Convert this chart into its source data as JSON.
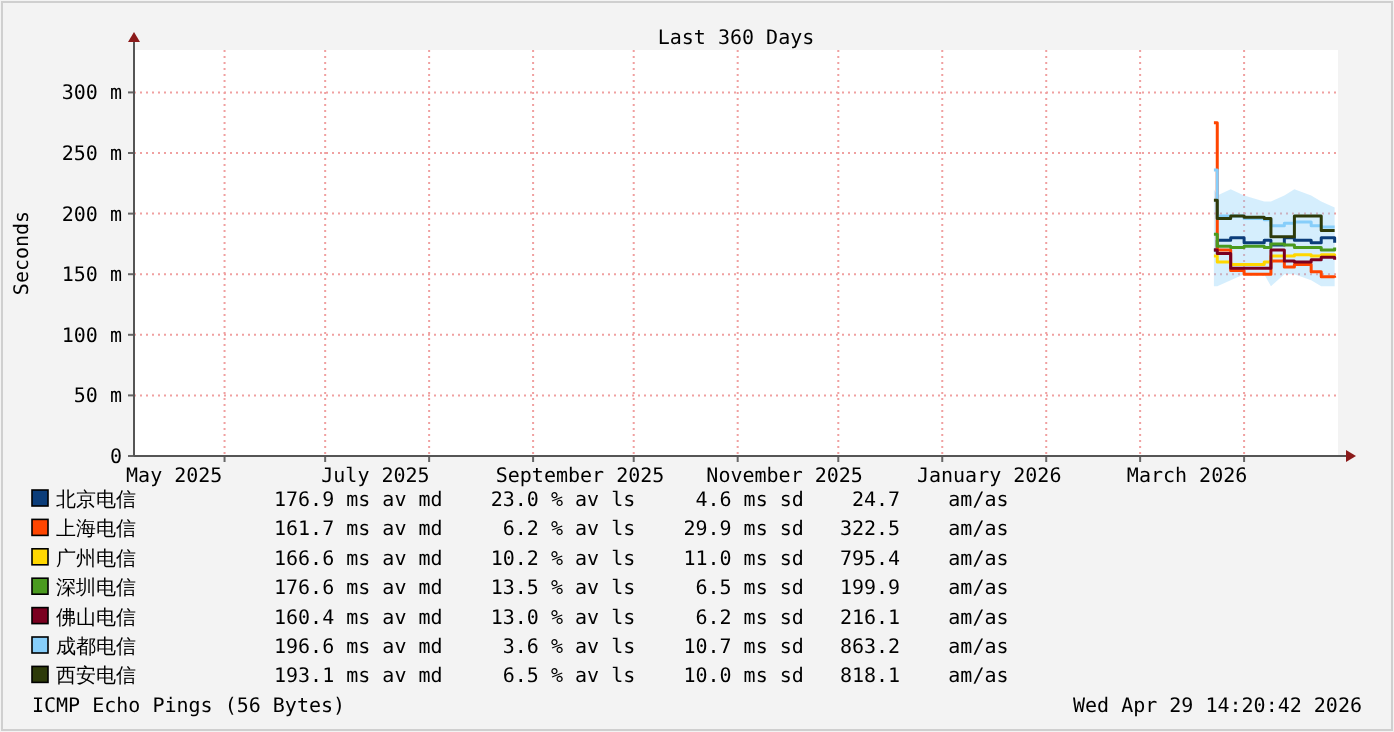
{
  "chart_data": {
    "type": "step",
    "title": "Last 360 Days",
    "ylabel": "Seconds",
    "x": [
      "2026-03-23",
      "2026-03-24",
      "2026-03-28",
      "2026-04-01",
      "2026-04-07",
      "2026-04-09",
      "2026-04-13",
      "2026-04-16",
      "2026-04-21",
      "2026-04-24",
      "2026-04-28"
    ],
    "xlim": [
      "2025-05-05",
      "2026-04-29"
    ],
    "xticks": [
      {
        "value": "2025-05-17",
        "label": "May 2025"
      },
      {
        "value": "2025-07-16",
        "label": "July 2025"
      },
      {
        "value": "2025-09-15",
        "label": "September 2025"
      },
      {
        "value": "2025-11-15",
        "label": "November 2025"
      },
      {
        "value": "2026-01-15",
        "label": "January 2026"
      },
      {
        "value": "2026-03-15",
        "label": "March 2026"
      },
      {
        "value": "2025-06-01",
        "label": null
      },
      {
        "value": "2025-07-01",
        "label": null
      },
      {
        "value": "2025-08-01",
        "label": null
      },
      {
        "value": "2025-09-01",
        "label": null
      },
      {
        "value": "2025-10-01",
        "label": null
      },
      {
        "value": "2025-11-01",
        "label": null
      },
      {
        "value": "2025-12-01",
        "label": null
      },
      {
        "value": "2026-01-01",
        "label": null
      },
      {
        "value": "2026-02-01",
        "label": null
      },
      {
        "value": "2026-03-01",
        "label": null
      },
      {
        "value": "2026-04-01",
        "label": null
      }
    ],
    "ylim": [
      0,
      335
    ],
    "yticks": [
      0,
      {
        "value": 50,
        "label": "50 m"
      },
      {
        "value": 100,
        "label": "100 m"
      },
      {
        "value": 150,
        "label": "150 m"
      },
      {
        "value": 200,
        "label": "200 m"
      },
      {
        "value": 250,
        "label": "250 m"
      },
      {
        "value": 300,
        "label": "300 m"
      }
    ],
    "grid": true,
    "legend": "bottom",
    "series": [
      {
        "name": "北京电信",
        "color": "#0b3d7a",
        "values": [
          170,
          178,
          180,
          176,
          178,
          174,
          180,
          178,
          176,
          180,
          176
        ]
      },
      {
        "name": "上海电信",
        "color": "#ff4500",
        "values": [
          275,
          170,
          153,
          150,
          150,
          161,
          156,
          158,
          152,
          148,
          147
        ]
      },
      {
        "name": "广州电信",
        "color": "#ffd700",
        "values": [
          165,
          160,
          158,
          158,
          160,
          165,
          165,
          166,
          165,
          166,
          165
        ]
      },
      {
        "name": "深圳电信",
        "color": "#4a9a1f",
        "values": [
          183,
          173,
          172,
          173,
          172,
          175,
          174,
          172,
          172,
          170,
          172
        ]
      },
      {
        "name": "佛山电信",
        "color": "#7a0020",
        "values": [
          170,
          167,
          155,
          155,
          155,
          170,
          161,
          160,
          162,
          164,
          162
        ]
      },
      {
        "name": "成都电信",
        "color": "#87cefa",
        "values": [
          236,
          198,
          198,
          196,
          195,
          190,
          192,
          193,
          190,
          189,
          189
        ],
        "lower": [
          140,
          140,
          145,
          150,
          150,
          140,
          150,
          150,
          145,
          140,
          140
        ],
        "upper": [
          220,
          215,
          220,
          215,
          210,
          210,
          215,
          220,
          215,
          210,
          205
        ]
      },
      {
        "name": "西安电信",
        "color": "#2d3a0a",
        "values": [
          211,
          196,
          198,
          197,
          196,
          181,
          181,
          198,
          198,
          186,
          186
        ]
      }
    ],
    "annotations": [
      "176.9 ms av md    23.0 % av ls     4.6 ms sd    24.7    am/as",
      "161.7 ms av md     6.2 % av ls    29.9 ms sd   322.5    am/as",
      "166.6 ms av md    10.2 % av ls    11.0 ms sd   795.4    am/as",
      "176.6 ms av md    13.5 % av ls     6.5 ms sd   199.9    am/as",
      "160.4 ms av md    13.0 % av ls     6.2 ms sd   216.1    am/as",
      "196.6 ms av md     3.6 % av ls    10.7 ms sd   863.2    am/as",
      "193.1 ms av md     6.5 % av ls    10.0 ms sd   818.1    am/as",
      "ICMP Echo Pings (56 Bytes)",
      "Wed Apr 29 14:20:42 2026"
    ]
  }
}
